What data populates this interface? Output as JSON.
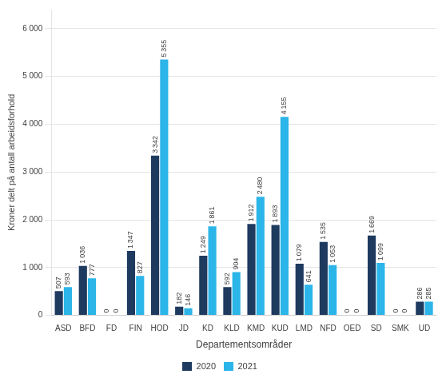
{
  "chart_data": {
    "type": "bar",
    "categories": [
      "ASD",
      "BFD",
      "FD",
      "FIN",
      "HOD",
      "JD",
      "KD",
      "KLD",
      "KMD",
      "KUD",
      "LMD",
      "NFD",
      "OED",
      "SD",
      "SMK",
      "UD"
    ],
    "series": [
      {
        "name": "2020",
        "color": "#1e3a5f",
        "values": [
          507,
          1036,
          0,
          1347,
          3342,
          182,
          1249,
          592,
          1912,
          1893,
          1079,
          1535,
          0,
          1669,
          0,
          286
        ],
        "value_labels": [
          "507",
          "1 036",
          "0",
          "1 347",
          "3 342",
          "182",
          "1 249",
          "592",
          "1 912",
          "1 893",
          "1 079",
          "1 535",
          "0",
          "1 669",
          "0",
          "286"
        ]
      },
      {
        "name": "2021",
        "color": "#2bb5e8",
        "values": [
          593,
          777,
          0,
          827,
          5355,
          146,
          1861,
          904,
          2480,
          4155,
          641,
          1053,
          0,
          1099,
          0,
          285
        ],
        "value_labels": [
          "593",
          "777",
          "0",
          "827",
          "5 355",
          "146",
          "1 861",
          "904",
          "2 480",
          "4 155",
          "641",
          "1 053",
          "0",
          "1 099",
          "0",
          "285"
        ]
      }
    ],
    "xlabel": "Departementsområder",
    "ylabel": "Kroner delt på antall arbeidsforhold",
    "ylim": [
      0,
      6400
    ],
    "yticks": [
      0,
      {
        "value": 1000,
        "label": "1 000"
      },
      {
        "value": 2000,
        "label": "2 000"
      },
      {
        "value": 3000,
        "label": "3 000"
      },
      {
        "value": 4000,
        "label": "4 000"
      },
      {
        "value": 5000,
        "label": "5 000"
      },
      {
        "value": 6000,
        "label": "6 000"
      }
    ],
    "grid": true,
    "legend": "bottom",
    "data_labels": true
  }
}
